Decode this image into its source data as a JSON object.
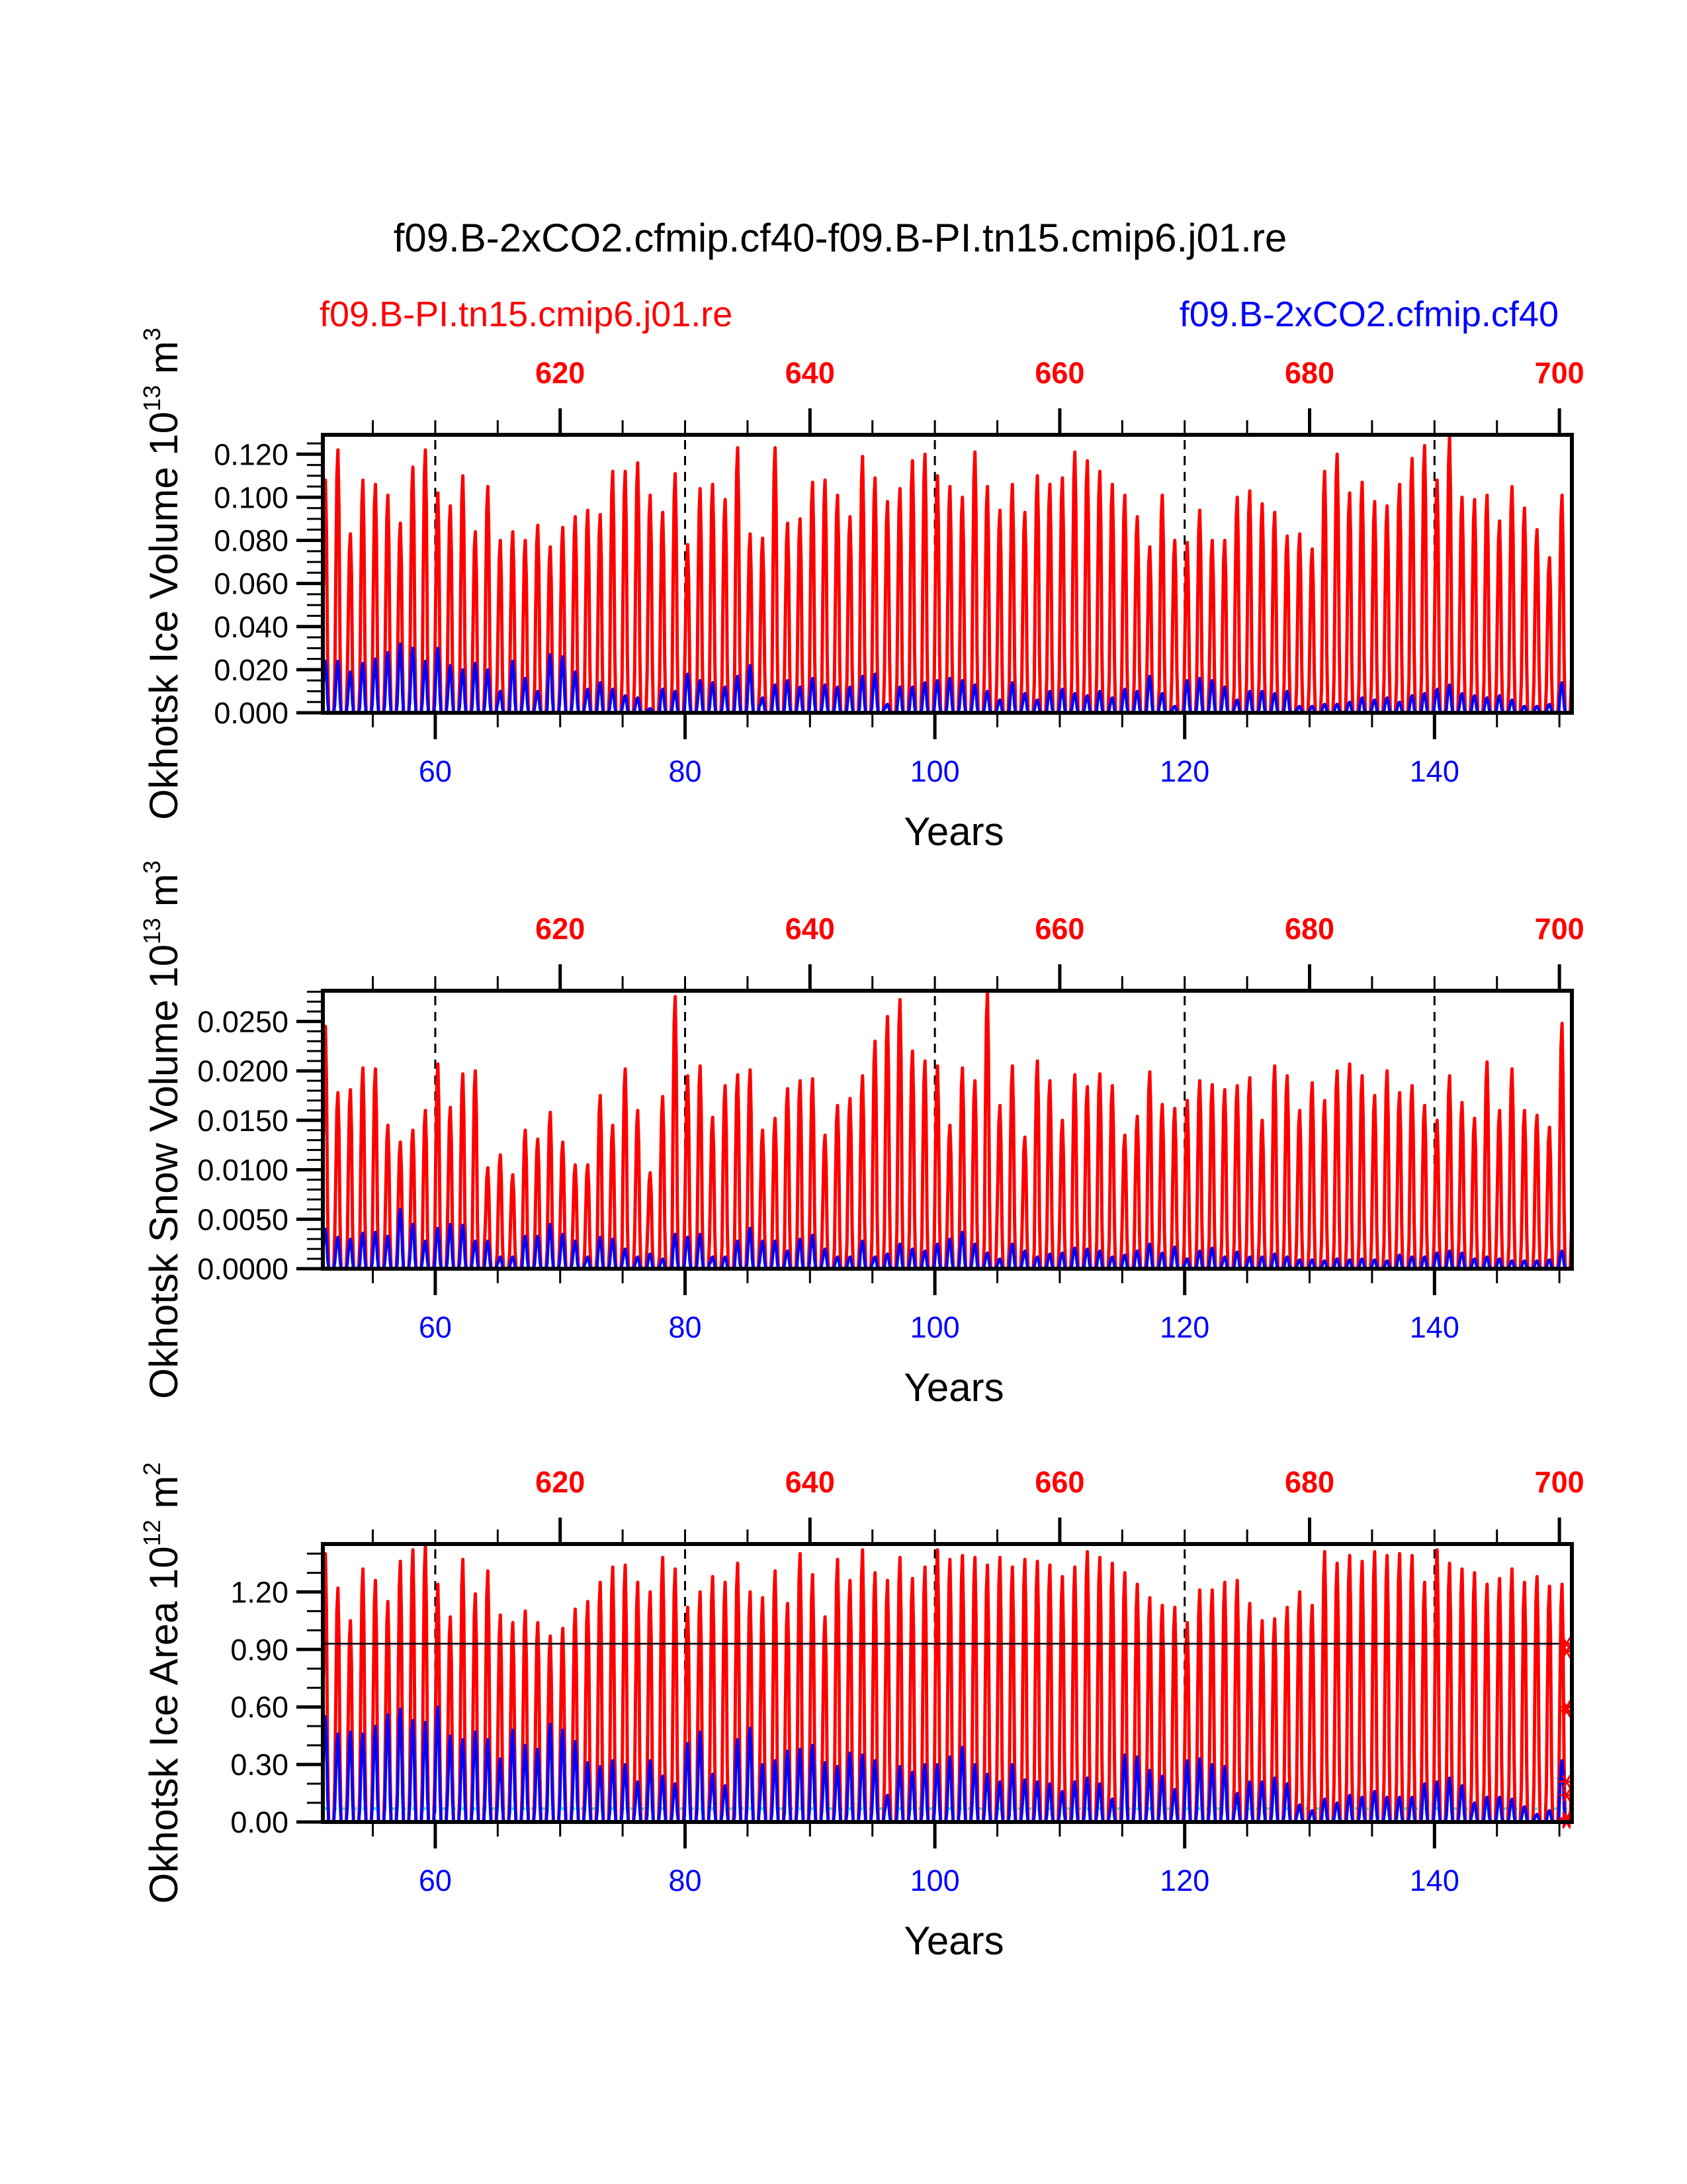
{
  "title": "f09.B-2xCO2.cfmip.cf40-f09.B-PI.tn15.cmip6.j01.re",
  "subtitle_left": "f09.B-PI.tn15.cmip6.j01.re",
  "subtitle_right": "f09.B-2xCO2.cfmip.cf40",
  "colors": {
    "red": "#ff0000",
    "blue": "#0000ff",
    "cyan": "#00ffff",
    "black": "#000000"
  },
  "chart_data": [
    {
      "type": "line",
      "title": "",
      "ylabel": "Okhotsk Ice Volume 10^13 m^3",
      "ylabel_parts": {
        "base": "Okhotsk Ice Volume 10",
        "exp": "13",
        "unit": " m",
        "unit_exp": "3"
      },
      "xlabel": "Years",
      "xlim": [
        51,
        151
      ],
      "ylim": [
        0,
        0.129
      ],
      "yticks": [
        0.0,
        0.02,
        0.04,
        0.06,
        0.08,
        0.1,
        0.12
      ],
      "ytick_labels": [
        "0.000",
        "0.020",
        "0.040",
        "0.060",
        "0.080",
        "0.100",
        "0.120"
      ],
      "yminor_step": 0.005,
      "xticks_bottom": [
        60,
        80,
        100,
        120,
        140
      ],
      "xticks_bottom_labels": [
        "60",
        "80",
        "100",
        "120",
        "140"
      ],
      "xticks_top": [
        620,
        640,
        660,
        680,
        700
      ],
      "xticks_top_labels": [
        "620",
        "640",
        "660",
        "680",
        "700"
      ],
      "top_axis_offset": 550,
      "vlines_dashed": [
        60,
        80,
        100,
        120,
        140
      ],
      "series": [
        {
          "name": "f09.B-PI.tn15.cmip6.j01.re",
          "color": "red",
          "first_year": 51,
          "annual_max": [
            0.108,
            0.122,
            0.083,
            0.108,
            0.106,
            0.101,
            0.088,
            0.114,
            0.122,
            0.102,
            0.096,
            0.11,
            0.084,
            0.105,
            0.08,
            0.084,
            0.08,
            0.087,
            0.077,
            0.086,
            0.091,
            0.094,
            0.092,
            0.112,
            0.112,
            0.116,
            0.101,
            0.093,
            0.111,
            0.078,
            0.104,
            0.106,
            0.099,
            0.123,
            0.083,
            0.081,
            0.123,
            0.088,
            0.09,
            0.107,
            0.108,
            0.101,
            0.091,
            0.119,
            0.109,
            0.098,
            0.104,
            0.117,
            0.12,
            0.11,
            0.105,
            0.1,
            0.121,
            0.105,
            0.094,
            0.106,
            0.093,
            0.11,
            0.106,
            0.109,
            0.121,
            0.117,
            0.112,
            0.106,
            0.101,
            0.091,
            0.077,
            0.101,
            0.08,
            0.079,
            0.094,
            0.08,
            0.08,
            0.1,
            0.103,
            0.097,
            0.093,
            0.082,
            0.083,
            0.076,
            0.112,
            0.12,
            0.102,
            0.107,
            0.098,
            0.096,
            0.106,
            0.118,
            0.124,
            0.108,
            0.128,
            0.1,
            0.099,
            0.101,
            0.089,
            0.105,
            0.095,
            0.085,
            0.072,
            0.101
          ]
        },
        {
          "name": "f09.B-2xCO2.cfmip.cf40",
          "color": "blue",
          "first_year": 51,
          "annual_max": [
            0.024,
            0.024,
            0.019,
            0.023,
            0.025,
            0.028,
            0.032,
            0.03,
            0.024,
            0.03,
            0.022,
            0.02,
            0.023,
            0.02,
            0.01,
            0.024,
            0.016,
            0.01,
            0.027,
            0.026,
            0.019,
            0.011,
            0.014,
            0.011,
            0.008,
            0.007,
            0.002,
            0.011,
            0.01,
            0.018,
            0.015,
            0.014,
            0.012,
            0.017,
            0.022,
            0.007,
            0.013,
            0.015,
            0.012,
            0.016,
            0.013,
            0.012,
            0.012,
            0.017,
            0.018,
            0.004,
            0.012,
            0.012,
            0.014,
            0.015,
            0.016,
            0.015,
            0.013,
            0.01,
            0.006,
            0.014,
            0.009,
            0.006,
            0.01,
            0.011,
            0.009,
            0.008,
            0.01,
            0.007,
            0.011,
            0.01,
            0.017,
            0.009,
            0.003,
            0.015,
            0.016,
            0.015,
            0.012,
            0.006,
            0.01,
            0.01,
            0.009,
            0.01,
            0.003,
            0.003,
            0.004,
            0.004,
            0.005,
            0.007,
            0.006,
            0.007,
            0.005,
            0.008,
            0.009,
            0.011,
            0.013,
            0.009,
            0.008,
            0.007,
            0.008,
            0.006,
            0.003,
            0.003,
            0.004,
            0.014
          ]
        }
      ]
    },
    {
      "type": "line",
      "title": "",
      "ylabel": "Okhotsk Snow Volume 10^13 m^3",
      "ylabel_parts": {
        "base": "Okhotsk Snow Volume 10",
        "exp": "13",
        "unit": " m",
        "unit_exp": "3"
      },
      "xlabel": "Years",
      "xlim": [
        51,
        151
      ],
      "ylim": [
        0,
        0.0281
      ],
      "yticks": [
        0.0,
        0.005,
        0.01,
        0.015,
        0.02,
        0.025
      ],
      "ytick_labels": [
        "0.0000",
        "0.0050",
        "0.0100",
        "0.0150",
        "0.0200",
        "0.0250"
      ],
      "yminor_step": 0.001,
      "xticks_bottom": [
        60,
        80,
        100,
        120,
        140
      ],
      "xticks_bottom_labels": [
        "60",
        "80",
        "100",
        "120",
        "140"
      ],
      "xticks_top": [
        620,
        640,
        660,
        680,
        700
      ],
      "xticks_top_labels": [
        "620",
        "640",
        "660",
        "680",
        "700"
      ],
      "top_axis_offset": 550,
      "vlines_dashed": [
        60,
        80,
        100,
        120,
        140
      ],
      "series": [
        {
          "name": "f09.B-PI.tn15.cmip6.j01.re",
          "color": "red",
          "first_year": 51,
          "annual_max": [
            0.0245,
            0.0178,
            0.0181,
            0.0203,
            0.0202,
            0.0145,
            0.0128,
            0.014,
            0.016,
            0.0207,
            0.0163,
            0.0197,
            0.02,
            0.0102,
            0.0115,
            0.0095,
            0.014,
            0.0131,
            0.0158,
            0.0128,
            0.0105,
            0.0105,
            0.0175,
            0.0145,
            0.0202,
            0.016,
            0.0097,
            0.0174,
            0.0275,
            0.0195,
            0.0205,
            0.0153,
            0.0185,
            0.0196,
            0.0201,
            0.014,
            0.0152,
            0.0182,
            0.019,
            0.0192,
            0.0135,
            0.0165,
            0.0172,
            0.0195,
            0.023,
            0.0255,
            0.0272,
            0.022,
            0.021,
            0.0205,
            0.0145,
            0.0203,
            0.019,
            0.028,
            0.0165,
            0.0205,
            0.0133,
            0.021,
            0.019,
            0.015,
            0.0196,
            0.0184,
            0.0197,
            0.0185,
            0.0135,
            0.0154,
            0.0199,
            0.0166,
            0.0162,
            0.017,
            0.019,
            0.0186,
            0.0181,
            0.0185,
            0.0193,
            0.015,
            0.0205,
            0.0195,
            0.016,
            0.0188,
            0.017,
            0.02,
            0.0207,
            0.0195,
            0.0175,
            0.02,
            0.0178,
            0.0185,
            0.0165,
            0.015,
            0.0195,
            0.0168,
            0.0152,
            0.0209,
            0.016,
            0.0202,
            0.016,
            0.0155,
            0.0143,
            0.0248
          ]
        },
        {
          "name": "f09.B-2xCO2.cfmip.cf40",
          "color": "blue",
          "first_year": 51,
          "annual_max": [
            0.004,
            0.0032,
            0.003,
            0.0036,
            0.0037,
            0.0033,
            0.006,
            0.0045,
            0.0028,
            0.0041,
            0.0045,
            0.0044,
            0.0028,
            0.0028,
            0.0012,
            0.0012,
            0.0033,
            0.0033,
            0.0045,
            0.0035,
            0.0028,
            0.0012,
            0.0032,
            0.003,
            0.002,
            0.0012,
            0.0015,
            0.001,
            0.0035,
            0.0032,
            0.0035,
            0.0012,
            0.0012,
            0.0028,
            0.0041,
            0.0028,
            0.0028,
            0.0018,
            0.003,
            0.0034,
            0.002,
            0.0012,
            0.0012,
            0.0028,
            0.0012,
            0.0015,
            0.0025,
            0.002,
            0.0018,
            0.0025,
            0.003,
            0.0037,
            0.0025,
            0.0016,
            0.001,
            0.0025,
            0.0018,
            0.0012,
            0.0015,
            0.0016,
            0.0021,
            0.002,
            0.0018,
            0.0012,
            0.0014,
            0.0018,
            0.0025,
            0.0016,
            0.0022,
            0.001,
            0.0018,
            0.0021,
            0.0012,
            0.0017,
            0.0012,
            0.0012,
            0.0015,
            0.0012,
            0.0009,
            0.0009,
            0.0008,
            0.001,
            0.0009,
            0.001,
            0.0009,
            0.0008,
            0.0014,
            0.0012,
            0.0012,
            0.0016,
            0.0018,
            0.0016,
            0.001,
            0.0012,
            0.001,
            0.0008,
            0.0008,
            0.0008,
            0.0009,
            0.0018
          ]
        }
      ]
    },
    {
      "type": "line",
      "title": "",
      "ylabel": "Okhotsk Ice Area 10^12 m^2",
      "ylabel_parts": {
        "base": "Okhotsk Ice Area 10",
        "exp": "12",
        "unit": " m",
        "unit_exp": "2"
      },
      "xlabel": "Years",
      "xlim": [
        51,
        151
      ],
      "ylim": [
        0,
        1.45
      ],
      "yticks": [
        0.0,
        0.3,
        0.6,
        0.9,
        1.2
      ],
      "ytick_labels": [
        "0.00",
        "0.30",
        "0.60",
        "0.90",
        "1.20"
      ],
      "yminor_step": 0.1,
      "xticks_bottom": [
        60,
        80,
        100,
        120,
        140
      ],
      "xticks_bottom_labels": [
        "60",
        "80",
        "100",
        "120",
        "140"
      ],
      "xticks_top": [
        620,
        640,
        660,
        680,
        700
      ],
      "xticks_top_labels": [
        "620",
        "640",
        "660",
        "680",
        "700"
      ],
      "top_axis_offset": 550,
      "vlines_dashed": [
        60,
        80,
        100,
        120,
        140
      ],
      "hline_black": 0.93,
      "hline_cyan_dotted": 0.07,
      "end_markers": [
        0.93,
        0.89,
        0.6,
        0.58,
        0.21,
        0.14,
        0.02,
        0.01,
        0.0
      ],
      "series": [
        {
          "name": "f09.B-PI.tn15.cmip6.j01.re",
          "color": "red",
          "first_year": 51,
          "annual_max": [
            1.4,
            1.22,
            1.05,
            1.32,
            1.26,
            1.15,
            1.36,
            1.42,
            1.44,
            1.24,
            1.07,
            1.37,
            1.19,
            1.31,
            1.08,
            1.04,
            1.1,
            1.04,
            0.97,
            1.01,
            1.11,
            1.15,
            1.25,
            1.33,
            1.34,
            1.25,
            1.2,
            1.38,
            1.32,
            1.12,
            1.2,
            1.28,
            1.25,
            1.35,
            1.2,
            1.17,
            1.31,
            1.14,
            1.4,
            1.29,
            1.07,
            1.37,
            1.26,
            1.42,
            1.3,
            1.26,
            1.38,
            1.27,
            1.33,
            1.42,
            1.37,
            1.39,
            1.38,
            1.34,
            1.38,
            1.33,
            1.37,
            1.36,
            1.34,
            1.28,
            1.33,
            1.41,
            1.38,
            1.35,
            1.3,
            1.24,
            1.17,
            1.13,
            1.12,
            1.04,
            1.21,
            1.21,
            1.25,
            1.26,
            1.14,
            1.05,
            1.06,
            1.12,
            1.2,
            1.13,
            1.41,
            1.35,
            1.39,
            1.36,
            1.41,
            1.39,
            1.4,
            1.39,
            1.25,
            1.42,
            1.35,
            1.32,
            1.3,
            1.24,
            1.27,
            1.32,
            1.25,
            1.28,
            1.23,
            1.24
          ]
        },
        {
          "name": "f09.B-2xCO2.cfmip.cf40",
          "color": "blue",
          "first_year": 51,
          "annual_max": [
            0.55,
            0.46,
            0.47,
            0.46,
            0.5,
            0.56,
            0.59,
            0.53,
            0.52,
            0.6,
            0.45,
            0.43,
            0.47,
            0.43,
            0.33,
            0.48,
            0.4,
            0.38,
            0.51,
            0.48,
            0.42,
            0.31,
            0.29,
            0.32,
            0.3,
            0.21,
            0.32,
            0.24,
            0.2,
            0.41,
            0.47,
            0.25,
            0.19,
            0.43,
            0.49,
            0.3,
            0.32,
            0.37,
            0.38,
            0.4,
            0.31,
            0.29,
            0.36,
            0.35,
            0.32,
            0.14,
            0.29,
            0.26,
            0.3,
            0.3,
            0.34,
            0.39,
            0.3,
            0.25,
            0.21,
            0.3,
            0.22,
            0.21,
            0.2,
            0.16,
            0.21,
            0.23,
            0.2,
            0.12,
            0.35,
            0.34,
            0.27,
            0.24,
            0.17,
            0.32,
            0.33,
            0.3,
            0.29,
            0.15,
            0.21,
            0.21,
            0.23,
            0.2,
            0.09,
            0.06,
            0.12,
            0.1,
            0.14,
            0.13,
            0.16,
            0.13,
            0.13,
            0.13,
            0.2,
            0.21,
            0.23,
            0.19,
            0.1,
            0.13,
            0.13,
            0.12,
            0.08,
            0.04,
            0.06,
            0.32
          ]
        }
      ]
    }
  ]
}
